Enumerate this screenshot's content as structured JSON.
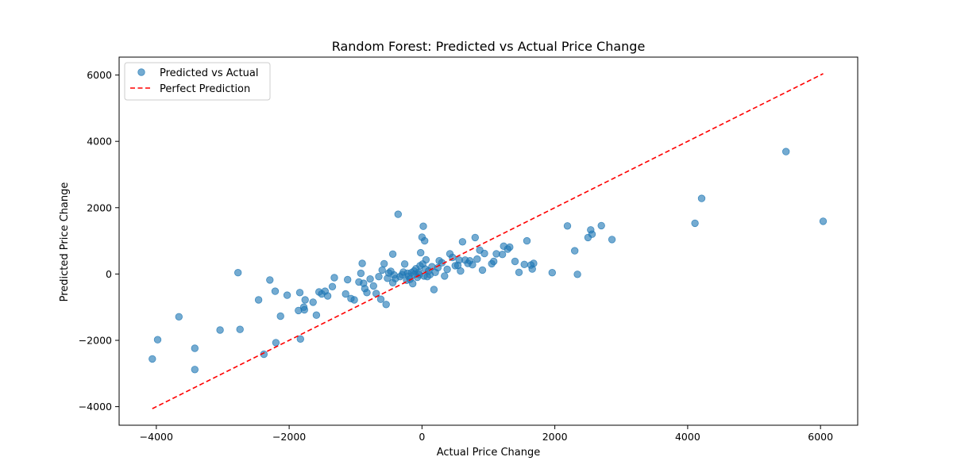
{
  "chart_data": {
    "type": "scatter",
    "title": "Random Forest: Predicted vs Actual Price Change",
    "xlabel": "Actual Price Change",
    "ylabel": "Predicted Price Change",
    "xlim": [
      -4560,
      6560
    ],
    "ylim": [
      -4560,
      6540
    ],
    "xticks": [
      -4000,
      -2000,
      0,
      2000,
      4000,
      6000
    ],
    "yticks": [
      -4000,
      -2000,
      0,
      2000,
      4000,
      6000
    ],
    "grid": false,
    "legend_position": "top-left",
    "series": [
      {
        "name": "Predicted vs Actual",
        "kind": "scatter",
        "color": "#1f77b4",
        "points": [
          [
            -4060,
            -2560
          ],
          [
            -3980,
            -1980
          ],
          [
            -3660,
            -1290
          ],
          [
            -3420,
            -2240
          ],
          [
            -3420,
            -2880
          ],
          [
            -3040,
            -1690
          ],
          [
            -2740,
            -1670
          ],
          [
            -2770,
            40
          ],
          [
            -2460,
            -780
          ],
          [
            -2380,
            -2420
          ],
          [
            -2290,
            -180
          ],
          [
            -2210,
            -520
          ],
          [
            -2200,
            -2070
          ],
          [
            -2130,
            -1270
          ],
          [
            -2030,
            -640
          ],
          [
            -1860,
            -1100
          ],
          [
            -1840,
            -560
          ],
          [
            -1830,
            -1960
          ],
          [
            -1780,
            -1000
          ],
          [
            -1760,
            -780
          ],
          [
            -1770,
            -1080
          ],
          [
            -1640,
            -850
          ],
          [
            -1590,
            -1240
          ],
          [
            -1550,
            -540
          ],
          [
            -1510,
            -600
          ],
          [
            -1460,
            -520
          ],
          [
            -1420,
            -660
          ],
          [
            -1350,
            -380
          ],
          [
            -1320,
            -110
          ],
          [
            -1150,
            -600
          ],
          [
            -1120,
            -170
          ],
          [
            -1070,
            -740
          ],
          [
            -1020,
            -780
          ],
          [
            -950,
            -240
          ],
          [
            -920,
            20
          ],
          [
            -900,
            320
          ],
          [
            -880,
            -280
          ],
          [
            -860,
            -440
          ],
          [
            -830,
            -560
          ],
          [
            -780,
            -150
          ],
          [
            -730,
            -360
          ],
          [
            -690,
            -590
          ],
          [
            -650,
            -80
          ],
          [
            -620,
            -760
          ],
          [
            -600,
            120
          ],
          [
            -570,
            310
          ],
          [
            -540,
            -920
          ],
          [
            -520,
            -130
          ],
          [
            -500,
            30
          ],
          [
            -470,
            80
          ],
          [
            -440,
            -260
          ],
          [
            -440,
            600
          ],
          [
            -420,
            -30
          ],
          [
            -400,
            -140
          ],
          [
            -360,
            1800
          ],
          [
            -330,
            -80
          ],
          [
            -300,
            -20
          ],
          [
            -280,
            60
          ],
          [
            -260,
            300
          ],
          [
            -230,
            -190
          ],
          [
            -220,
            20
          ],
          [
            -200,
            -70
          ],
          [
            -180,
            -160
          ],
          [
            -160,
            40
          ],
          [
            -140,
            -290
          ],
          [
            -120,
            90
          ],
          [
            -110,
            -10
          ],
          [
            -90,
            160
          ],
          [
            -70,
            -100
          ],
          [
            -50,
            50
          ],
          [
            -40,
            -20
          ],
          [
            -30,
            250
          ],
          [
            -20,
            640
          ],
          [
            0,
            1110
          ],
          [
            10,
            300
          ],
          [
            20,
            1440
          ],
          [
            30,
            -60
          ],
          [
            40,
            1000
          ],
          [
            50,
            150
          ],
          [
            60,
            430
          ],
          [
            80,
            -80
          ],
          [
            100,
            90
          ],
          [
            120,
            -20
          ],
          [
            150,
            220
          ],
          [
            180,
            -470
          ],
          [
            200,
            50
          ],
          [
            240,
            190
          ],
          [
            260,
            400
          ],
          [
            300,
            340
          ],
          [
            340,
            -60
          ],
          [
            380,
            140
          ],
          [
            420,
            610
          ],
          [
            460,
            500
          ],
          [
            500,
            250
          ],
          [
            540,
            260
          ],
          [
            560,
            420
          ],
          [
            580,
            90
          ],
          [
            610,
            970
          ],
          [
            650,
            420
          ],
          [
            690,
            320
          ],
          [
            720,
            400
          ],
          [
            760,
            280
          ],
          [
            800,
            1100
          ],
          [
            830,
            450
          ],
          [
            870,
            720
          ],
          [
            910,
            120
          ],
          [
            940,
            620
          ],
          [
            1050,
            310
          ],
          [
            1080,
            380
          ],
          [
            1120,
            610
          ],
          [
            1210,
            590
          ],
          [
            1230,
            840
          ],
          [
            1290,
            750
          ],
          [
            1320,
            810
          ],
          [
            1400,
            380
          ],
          [
            1460,
            50
          ],
          [
            1540,
            290
          ],
          [
            1580,
            1000
          ],
          [
            1640,
            270
          ],
          [
            1660,
            150
          ],
          [
            1680,
            320
          ],
          [
            1960,
            40
          ],
          [
            2190,
            1450
          ],
          [
            2300,
            700
          ],
          [
            2340,
            -10
          ],
          [
            2500,
            1100
          ],
          [
            2540,
            1330
          ],
          [
            2560,
            1200
          ],
          [
            2700,
            1460
          ],
          [
            2860,
            1040
          ],
          [
            4110,
            1530
          ],
          [
            4210,
            2280
          ],
          [
            5480,
            3690
          ],
          [
            6040,
            1590
          ]
        ]
      },
      {
        "name": "Perfect Prediction",
        "kind": "line",
        "color": "#ff0000",
        "points": [
          [
            -4060,
            -4060
          ],
          [
            6040,
            6040
          ]
        ]
      }
    ]
  }
}
